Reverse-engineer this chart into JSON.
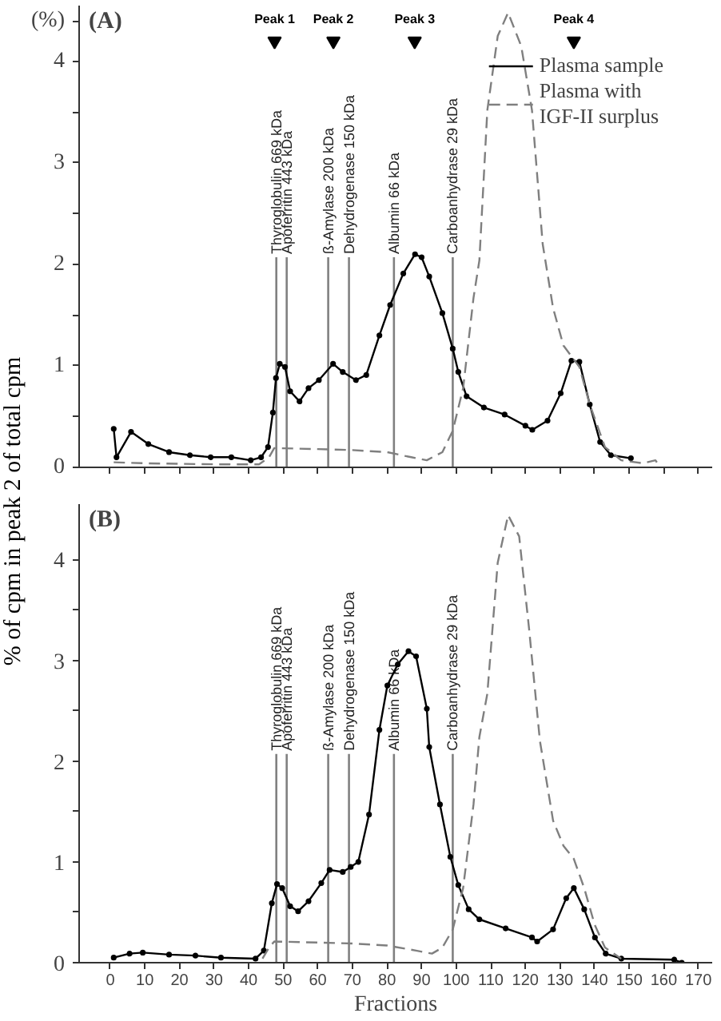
{
  "chart_data": [
    {
      "type": "line",
      "title": "(A)",
      "ylabel": "% of cpm in peak 2 of total cpm",
      "xlim": [
        -9,
        174
      ],
      "ylim": [
        0,
        4.55
      ],
      "xticks": [
        0,
        10,
        20,
        30,
        40,
        50,
        60,
        70,
        80,
        90,
        100,
        110,
        120,
        130,
        140,
        150,
        160,
        170
      ],
      "yticks": [
        0,
        {
          "value": 0.5,
          "label": null
        },
        1,
        {
          "value": 1.5,
          "label": null
        },
        2,
        {
          "value": 2.5,
          "label": null
        },
        3,
        {
          "value": 3.5,
          "label": null
        },
        4,
        {
          "value": 4.4,
          "label": "(%)"
        }
      ],
      "tick_labels": "y",
      "grid": false,
      "legend": "top right",
      "series": [
        {
          "name": "Plasma sample",
          "color": "#000000",
          "marker": "circle",
          "line_style": "solid",
          "x": [
            1,
            1.8,
            6,
            11,
            17,
            23,
            29,
            35,
            40.6,
            43.6,
            45.6,
            47,
            47.9,
            49,
            50.5,
            52,
            54.7,
            57.3,
            60.3,
            64.4,
            67.2,
            71,
            74,
            77.8,
            80.9,
            84.7,
            88.1,
            90,
            92.2,
            96,
            99,
            100.6,
            103,
            108,
            114,
            120,
            122,
            126.4,
            130.2,
            133.3,
            135.6,
            138.6,
            141.6,
            144.7,
            150.5
          ],
          "values": [
            0.38,
            0.1,
            0.35,
            0.23,
            0.15,
            0.12,
            0.1,
            0.1,
            0.07,
            0.1,
            0.2,
            0.54,
            0.88,
            1.02,
            0.99,
            0.75,
            0.65,
            0.78,
            0.86,
            1.02,
            0.94,
            0.86,
            0.91,
            1.3,
            1.6,
            1.91,
            2.1,
            2.07,
            1.88,
            1.52,
            1.17,
            0.94,
            0.7,
            0.59,
            0.52,
            0.41,
            0.37,
            0.46,
            0.73,
            1.05,
            1.04,
            0.62,
            0.25,
            0.12,
            0.09
          ]
        },
        {
          "name": "Plasma with IGF-II surplus",
          "color": "#7f7f7f",
          "marker": "none",
          "line_style": "dashed",
          "x": [
            1,
            10,
            30,
            43,
            45.9,
            47.4,
            60,
            70,
            80,
            87,
            91.5,
            96,
            99,
            102,
            105,
            106.7,
            109,
            112,
            115,
            118.8,
            121.9,
            125,
            128,
            131,
            135.6,
            138.6,
            143,
            147.7,
            154,
            157.6,
            159
          ],
          "values": [
            0.05,
            0.04,
            0.03,
            0.03,
            0.1,
            0.19,
            0.18,
            0.17,
            0.15,
            0.1,
            0.07,
            0.15,
            0.36,
            0.78,
            1.67,
            2.04,
            3.52,
            4.25,
            4.48,
            4.15,
            3.52,
            2.2,
            1.57,
            1.2,
            0.99,
            0.62,
            0.2,
            0.07,
            0.04,
            0.07,
            0
          ]
        }
      ],
      "ref_lines": [
        {
          "axis": "x",
          "value": 48,
          "label": "Thyroglobulin 669 kDa",
          "color": "#808080"
        },
        {
          "axis": "x",
          "value": 51,
          "label": "Apoferritin 443 kDa",
          "color": "#808080"
        },
        {
          "axis": "x",
          "value": 63,
          "label": "ß-Amylase 200 kDa",
          "color": "#808080"
        },
        {
          "axis": "x",
          "value": 69,
          "label": "Dehydrogenase 150 kDa",
          "color": "#808080"
        },
        {
          "axis": "x",
          "value": 82,
          "label": "Albumin 66 kDa",
          "color": "#808080"
        },
        {
          "axis": "x",
          "value": 99,
          "label": "Carboanhydrase 29 kDa",
          "color": "#808080"
        }
      ],
      "annotations": [
        {
          "text": "Peak 1",
          "x": 47.5,
          "y": 4.2
        },
        {
          "text": "Peak 2",
          "x": 64.5,
          "y": 4.2
        },
        {
          "text": "Peak 3",
          "x": 88,
          "y": 4.2
        },
        {
          "text": "Peak 4",
          "x": 134,
          "y": 4.2
        }
      ]
    },
    {
      "type": "line",
      "title": "(B)",
      "xlabel": "Fractions",
      "xlim": [
        -9,
        174
      ],
      "ylim": [
        0,
        4.55
      ],
      "xticks": [
        0,
        10,
        20,
        30,
        40,
        50,
        60,
        70,
        80,
        90,
        100,
        110,
        120,
        130,
        140,
        150,
        160,
        170
      ],
      "yticks": [
        0,
        {
          "value": 0.5,
          "label": null
        },
        1,
        {
          "value": 1.5,
          "label": null
        },
        2,
        {
          "value": 2.5,
          "label": null
        },
        3,
        {
          "value": 3.5,
          "label": null
        },
        4
      ],
      "grid": false,
      "series": [
        {
          "color": "#000000",
          "marker": "circle",
          "line_style": "solid",
          "x": [
            1,
            5.6,
            9.4,
            17,
            24.6,
            32,
            42,
            44.4,
            46.7,
            48.2,
            49.7,
            52,
            54.3,
            57.3,
            61,
            63.4,
            67.2,
            69.5,
            71.7,
            74.8,
            77.8,
            80.1,
            83.1,
            86.2,
            88.4,
            91.5,
            92.2,
            95.3,
            98.3,
            100.6,
            103.6,
            106.7,
            114.3,
            121.9,
            123.4,
            128,
            131.8,
            134,
            137,
            140.1,
            143.2,
            147.7,
            163,
            165.2
          ],
          "values": [
            0.05,
            0.09,
            0.1,
            0.08,
            0.07,
            0.05,
            0.04,
            0.12,
            0.59,
            0.78,
            0.74,
            0.56,
            0.51,
            0.61,
            0.79,
            0.92,
            0.9,
            0.95,
            1.0,
            1.47,
            2.31,
            2.75,
            2.96,
            3.09,
            3.04,
            2.52,
            2.14,
            1.57,
            1.05,
            0.77,
            0.53,
            0.43,
            0.34,
            0.25,
            0.21,
            0.33,
            0.64,
            0.74,
            0.53,
            0.25,
            0.09,
            0.04,
            0.03,
            0
          ]
        },
        {
          "color": "#7f7f7f",
          "marker": "none",
          "line_style": "dashed",
          "x": [
            44,
            45.9,
            47.4,
            60,
            70,
            80,
            88.4,
            93,
            96,
            99,
            102,
            105,
            106.7,
            109,
            112,
            115,
            118.2,
            121.1,
            124.2,
            128,
            131,
            134,
            137,
            140,
            143,
            147.7
          ],
          "values": [
            0.04,
            0.15,
            0.21,
            0.2,
            0.19,
            0.17,
            0.12,
            0.09,
            0.15,
            0.33,
            0.74,
            1.57,
            2.24,
            2.67,
            3.97,
            4.44,
            4.23,
            3.3,
            2.2,
            1.41,
            1.16,
            1.03,
            0.74,
            0.38,
            0.15,
            0.04
          ]
        }
      ],
      "ref_lines": [
        {
          "axis": "x",
          "value": 48,
          "label": "Thyroglobulin 669 kDa",
          "color": "#808080"
        },
        {
          "axis": "x",
          "value": 51,
          "label": "Apoferritin 443 kDa",
          "color": "#808080"
        },
        {
          "axis": "x",
          "value": 63,
          "label": "ß-Amylase 200 kDa",
          "color": "#808080"
        },
        {
          "axis": "x",
          "value": 69,
          "label": "Dehydrogenase 150 kDa",
          "color": "#808080"
        },
        {
          "axis": "x",
          "value": 82,
          "label": "Albumin 66 kDa",
          "color": "#808080"
        },
        {
          "axis": "x",
          "value": 99,
          "label": "Carboanhydrase 29 kDa",
          "color": "#808080"
        }
      ]
    }
  ]
}
